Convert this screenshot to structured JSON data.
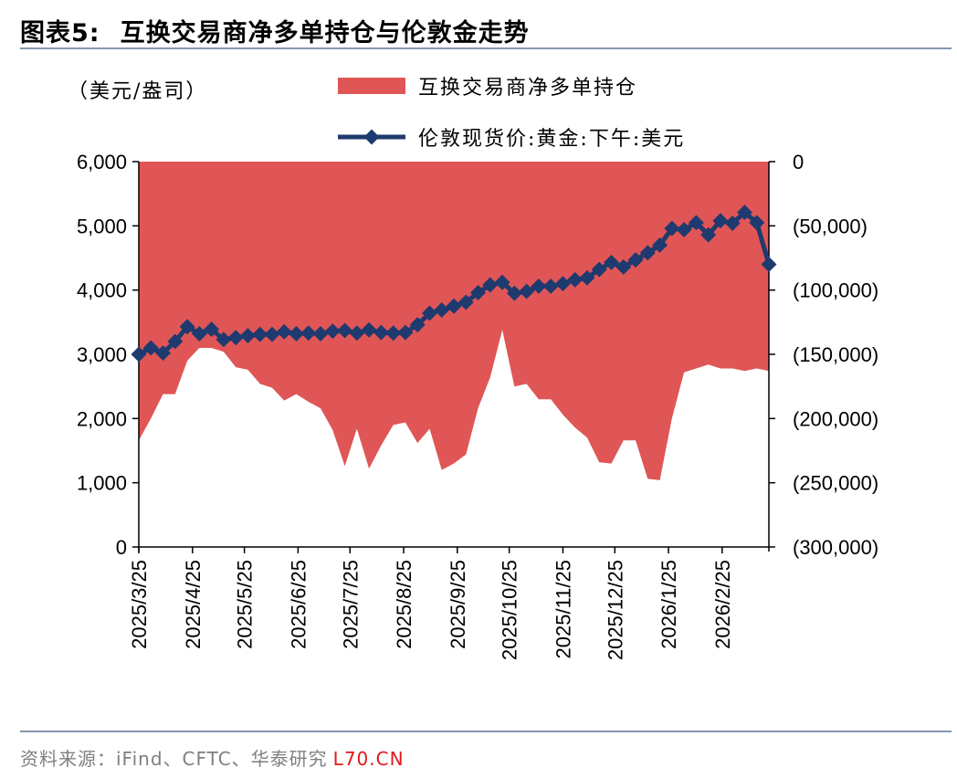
{
  "header": {
    "figure_label": "图表5:",
    "title": "互换交易商净多单持仓与伦敦金走势"
  },
  "unit_label": "（美元/盎司）",
  "footer": {
    "source": "资料来源：iFind、CFTC、华泰研究",
    "watermark": "L70.CN"
  },
  "colors": {
    "area": "#e05656",
    "line": "#1f3a6e",
    "rule": "#8497b0"
  },
  "chart_data": {
    "type": "line+area",
    "legend_placement": "top",
    "grid": false,
    "series": [
      {
        "name": "互换交易商净多单持仓",
        "type": "area",
        "axis": "right",
        "values": [
          -217000,
          -200000,
          -181000,
          -181000,
          -155000,
          -145000,
          -145000,
          -148000,
          -160000,
          -162000,
          -173000,
          -176000,
          -186000,
          -181000,
          -187000,
          -192000,
          -209000,
          -237000,
          -208000,
          -239000,
          -221000,
          -205000,
          -203000,
          -219000,
          -208000,
          -240000,
          -235000,
          -228000,
          -192000,
          -168000,
          -131000,
          -175000,
          -173000,
          -185000,
          -185000,
          -197000,
          -207000,
          -215000,
          -234000,
          -235000,
          -217000,
          -217000,
          -247000,
          -248000,
          -200000,
          -164000,
          -161000,
          -158000,
          -161000,
          -161000,
          -163000,
          -161000,
          -163000
        ]
      },
      {
        "name": "伦敦现货价:黄金:下午:美元",
        "type": "line",
        "axis": "left",
        "values": [
          3000,
          3100,
          3020,
          3200,
          3430,
          3320,
          3390,
          3230,
          3260,
          3290,
          3310,
          3310,
          3350,
          3320,
          3330,
          3320,
          3360,
          3370,
          3330,
          3380,
          3340,
          3330,
          3340,
          3460,
          3640,
          3690,
          3750,
          3810,
          3960,
          4080,
          4120,
          3950,
          3980,
          4060,
          4060,
          4100,
          4160,
          4190,
          4320,
          4430,
          4360,
          4470,
          4580,
          4700,
          4960,
          4940,
          5050,
          4860,
          5080,
          5040,
          5210,
          5050,
          4400
        ]
      }
    ],
    "x_dates": [
      "2025/3/25",
      "2025/4/1",
      "2025/4/8",
      "2025/4/15",
      "2025/4/22",
      "2025/4/29",
      "2025/5/6",
      "2025/5/13",
      "2025/5/20",
      "2025/5/27",
      "2025/6/3",
      "2025/6/10",
      "2025/6/17",
      "2025/6/24",
      "2025/7/1",
      "2025/7/8",
      "2025/7/15",
      "2025/7/22",
      "2025/7/29",
      "2025/8/5",
      "2025/8/12",
      "2025/8/19",
      "2025/8/26",
      "2025/9/2",
      "2025/9/9",
      "2025/9/16",
      "2025/9/23",
      "2025/9/30",
      "2025/10/7",
      "2025/10/14",
      "2025/10/21",
      "2025/10/28",
      "2025/11/4",
      "2025/11/11",
      "2025/11/18",
      "2025/11/25",
      "2025/12/2",
      "2025/12/9",
      "2025/12/16",
      "2025/12/23",
      "2025/12/30",
      "2026/1/6",
      "2026/1/13",
      "2026/1/20",
      "2026/1/27",
      "2026/2/3",
      "2026/2/10",
      "2026/2/17",
      "2026/2/24",
      "2026/3/3",
      "2026/3/10",
      "2026/3/17",
      "2026/3/24"
    ],
    "x_ticks": [
      "2025/3/25",
      "2025/4/25",
      "2025/5/25",
      "2025/6/25",
      "2025/7/25",
      "2025/8/25",
      "2025/9/25",
      "2025/10/25",
      "2025/11/25",
      "2025/12/25",
      "2026/1/25",
      "2026/2/25"
    ],
    "y_left": {
      "lim": [
        0,
        6000
      ],
      "ticks": [
        0,
        1000,
        2000,
        3000,
        4000,
        5000,
        6000
      ],
      "tick_labels": [
        "0",
        "1,000",
        "2,000",
        "3,000",
        "4,000",
        "5,000",
        "6,000"
      ]
    },
    "y_right": {
      "lim": [
        -300000,
        0
      ],
      "ticks": [
        0,
        -50000,
        -100000,
        -150000,
        -200000,
        -250000,
        -300000
      ],
      "tick_labels": [
        "0",
        "(50,000)",
        "(100,000)",
        "(150,000)",
        "(200,000)",
        "(250,000)",
        "(300,000)"
      ]
    }
  }
}
